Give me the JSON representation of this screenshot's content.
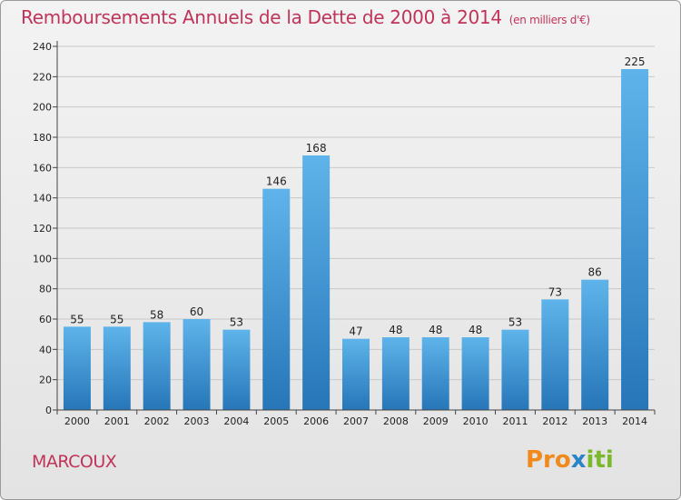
{
  "header": {
    "title": "Remboursements Annuels de la Dette de 2000 à 2014",
    "unit": "(en milliers d'€)"
  },
  "footer": {
    "commune": "MARCOUX",
    "logo": {
      "p1": "Pro",
      "p2": "x",
      "p3": "iti"
    }
  },
  "colors": {
    "title": "#c0345a",
    "bar_light": "#5eb4ea",
    "bar_dark": "#2676b8",
    "logo_orange": "#f08a1c",
    "logo_blue": "#2b84c8",
    "logo_green": "#7ab82c"
  },
  "chart_data": {
    "type": "bar",
    "title": "Remboursements Annuels de la Dette de 2000 à 2014",
    "unit": "(en milliers d'€)",
    "categories": [
      "2000",
      "2001",
      "2002",
      "2003",
      "2004",
      "2005",
      "2006",
      "2007",
      "2008",
      "2009",
      "2010",
      "2011",
      "2012",
      "2013",
      "2014"
    ],
    "values": [
      55,
      55,
      58,
      60,
      53,
      146,
      168,
      47,
      48,
      48,
      48,
      53,
      73,
      86,
      225
    ],
    "ylim": [
      0,
      240
    ],
    "yticks": [
      0,
      20,
      40,
      60,
      80,
      100,
      120,
      140,
      160,
      180,
      200,
      220,
      240
    ],
    "grid": true,
    "legend": "none"
  }
}
